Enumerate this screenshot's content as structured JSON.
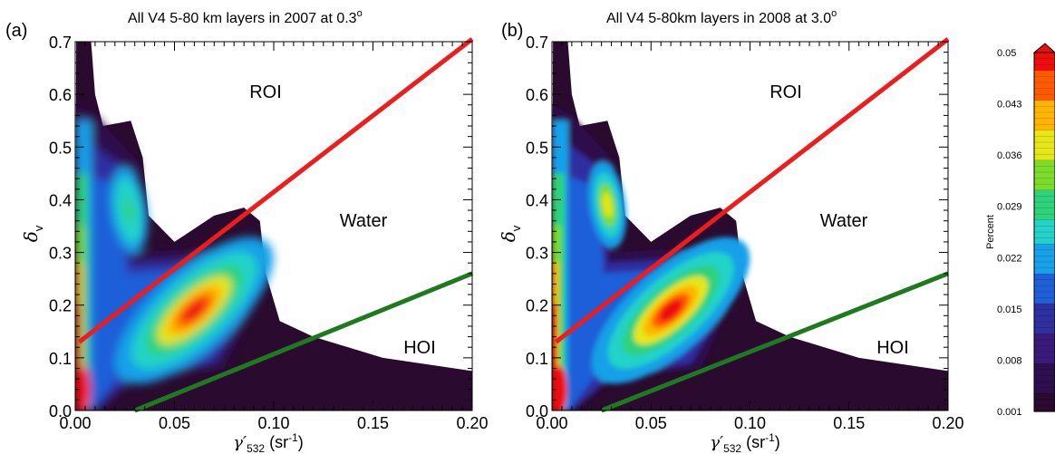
{
  "panels": [
    {
      "label": "(a)",
      "title": "All V4 5-80 km layers in 2007 at 0.3",
      "title_sup": "o",
      "xlabel": "γ′",
      "xlabel_sub": "532",
      "xlabel_unit": "(sr",
      "xlabel_unit_sup": "-1",
      "xlabel_unit_close": ")",
      "ylabel": "δ",
      "ylabel_sub": "v",
      "regions": [
        "ROI",
        "Water",
        "HOI"
      ]
    },
    {
      "label": "(b)",
      "title": "All V4 5-80km layers in 2008 at 3.0",
      "title_sup": "o",
      "xlabel": "γ′",
      "xlabel_sub": "532",
      "xlabel_unit": "(sr",
      "xlabel_unit_sup": "-1",
      "xlabel_unit_close": ")",
      "ylabel": "δ",
      "ylabel_sub": "v",
      "regions": [
        "ROI",
        "Water",
        "HOI"
      ]
    }
  ],
  "colorbar": {
    "label": "Percent",
    "ticks": [
      "0.05",
      "0.043",
      "0.036",
      "0.029",
      "0.022",
      "0.015",
      "0.008",
      "0.001"
    ]
  },
  "colors": {
    "roi_line": "#ee1c1c",
    "hoi_line": "#1e7a1e",
    "colormap": [
      "#2a0a2e",
      "#2e0f4d",
      "#3a1a78",
      "#2f2fa0",
      "#1f5fd8",
      "#19a0e8",
      "#23d3c8",
      "#2ed27a",
      "#7ddc2a",
      "#e6e619",
      "#ffb400",
      "#ff5a00",
      "#ee0d0d"
    ]
  },
  "chart_data": [
    {
      "type": "heatmap",
      "title": "All V4 5-80 km layers in 2007 at 0.3°",
      "xlabel": "γ′532 (sr-1)",
      "ylabel": "δv",
      "xlim": [
        0.0,
        0.2
      ],
      "ylim": [
        0.0,
        0.7
      ],
      "xticks": [
        "0.00",
        "0.05",
        "0.10",
        "0.15",
        "0.20"
      ],
      "yticks": [
        "0.0",
        "0.1",
        "0.2",
        "0.3",
        "0.4",
        "0.5",
        "0.6",
        "0.7"
      ],
      "colorbar_range": [
        0.001,
        0.05
      ],
      "lines": [
        {
          "name": "ROI boundary",
          "color": "red",
          "points": [
            [
              0.002,
              0.13
            ],
            [
              0.2,
              0.705
            ]
          ]
        },
        {
          "name": "HOI boundary",
          "color": "green",
          "points": [
            [
              0.03,
              0.0
            ],
            [
              0.2,
              0.26
            ]
          ]
        }
      ],
      "density_peaks": [
        {
          "x": 0.06,
          "y": 0.19,
          "level": 0.05
        },
        {
          "x": 0.027,
          "y": 0.38,
          "level": 0.029
        },
        {
          "x": 0.002,
          "y": 0.05,
          "level": 0.05
        }
      ],
      "regions": [
        "ROI",
        "Water",
        "HOI"
      ]
    },
    {
      "type": "heatmap",
      "title": "All V4 5-80km layers in 2008 at 3.0°",
      "xlabel": "γ′532 (sr-1)",
      "ylabel": "δv",
      "xlim": [
        0.0,
        0.2
      ],
      "ylim": [
        0.0,
        0.7
      ],
      "xticks": [
        "0.00",
        "0.05",
        "0.10",
        "0.15",
        "0.20"
      ],
      "yticks": [
        "0.0",
        "0.1",
        "0.2",
        "0.3",
        "0.4",
        "0.5",
        "0.6",
        "0.7"
      ],
      "colorbar_range": [
        0.001,
        0.05
      ],
      "lines": [
        {
          "name": "ROI boundary",
          "color": "red",
          "points": [
            [
              0.002,
              0.13
            ],
            [
              0.2,
              0.705
            ]
          ]
        },
        {
          "name": "HOI boundary",
          "color": "green",
          "points": [
            [
              0.025,
              0.0
            ],
            [
              0.2,
              0.26
            ]
          ]
        }
      ],
      "density_peaks": [
        {
          "x": 0.06,
          "y": 0.19,
          "level": 0.05
        },
        {
          "x": 0.028,
          "y": 0.39,
          "level": 0.043
        },
        {
          "x": 0.002,
          "y": 0.05,
          "level": 0.05
        }
      ],
      "regions": [
        "ROI",
        "Water",
        "HOI"
      ]
    }
  ]
}
